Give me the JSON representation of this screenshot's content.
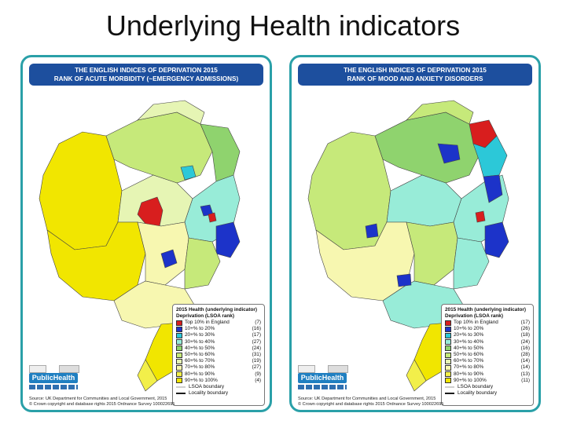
{
  "slide": {
    "title": "Underlying Health indicators"
  },
  "maps": [
    {
      "banner_line1": "THE ENGLISH INDICES OF DEPRIVATION 2015",
      "banner_line2": "RANK OF ACUTE MORBIDITY (~EMERGENCY ADMISSIONS)",
      "legend_title_1": "2015 Health (underlying indicator)",
      "legend_title_2": "Deprivation (LSOA rank)",
      "legend": [
        {
          "label": "Top 10% in England",
          "count": "(7)",
          "color": "#d81e1e"
        },
        {
          "label": "10+% to  20%",
          "count": "(16)",
          "color": "#1c33c9"
        },
        {
          "label": "20+% to  30%",
          "count": "(17)",
          "color": "#2cc8d8"
        },
        {
          "label": "30+% to  40%",
          "count": "(27)",
          "color": "#98ecd8"
        },
        {
          "label": "40+% to  50%",
          "count": "(24)",
          "color": "#8fd36e"
        },
        {
          "label": "50+% to  60%",
          "count": "(31)",
          "color": "#c6e97a"
        },
        {
          "label": "60+% to  70%",
          "count": "(19)",
          "color": "#e6f5b4"
        },
        {
          "label": "70+% to  80%",
          "count": "(27)",
          "color": "#f7f7b0"
        },
        {
          "label": "80+% to  90%",
          "count": "(9)",
          "color": "#f2ef4a"
        },
        {
          "label": "90+% to 100%",
          "count": "(4)",
          "color": "#f1e600"
        }
      ],
      "lsoa_label": "LSOA boundary",
      "locality_label": "Locality boundary",
      "source_1": "Source: UK Department for Communities and Local Government, 2015",
      "source_2": "© Crown copyright and database rights 2015 Ordnance Survey 100022695"
    },
    {
      "banner_line1": "THE ENGLISH INDICES OF DEPRIVATION 2015",
      "banner_line2": "RANK OF MOOD AND ANXIETY DISORDERS",
      "legend_title_1": "2015 Health (underlying indicator)",
      "legend_title_2": "Deprivation (LSOA rank)",
      "legend": [
        {
          "label": "Top 10% in England",
          "count": "(17)",
          "color": "#d81e1e"
        },
        {
          "label": "10+% to  20%",
          "count": "(26)",
          "color": "#1c33c9"
        },
        {
          "label": "20+% to  30%",
          "count": "(18)",
          "color": "#2cc8d8"
        },
        {
          "label": "30+% to  40%",
          "count": "(24)",
          "color": "#98ecd8"
        },
        {
          "label": "40+% to  50%",
          "count": "(16)",
          "color": "#8fd36e"
        },
        {
          "label": "50+% to  60%",
          "count": "(28)",
          "color": "#c6e97a"
        },
        {
          "label": "60+% to  70%",
          "count": "(14)",
          "color": "#e6f5b4"
        },
        {
          "label": "70+% to  80%",
          "count": "(14)",
          "color": "#f7f7b0"
        },
        {
          "label": "80+% to  90%",
          "count": "(13)",
          "color": "#f2ef4a"
        },
        {
          "label": "90+% to 100%",
          "count": "(11)",
          "color": "#f1e600"
        }
      ],
      "lsoa_label": "LSOA boundary",
      "locality_label": "Locality boundary",
      "source_1": "Source: UK Department for Communities and Local Government, 2015",
      "source_2": "© Crown copyright and database rights 2015 Ordnance Survey 100022695"
    }
  ],
  "logo": {
    "brand": "PublicHealth"
  }
}
